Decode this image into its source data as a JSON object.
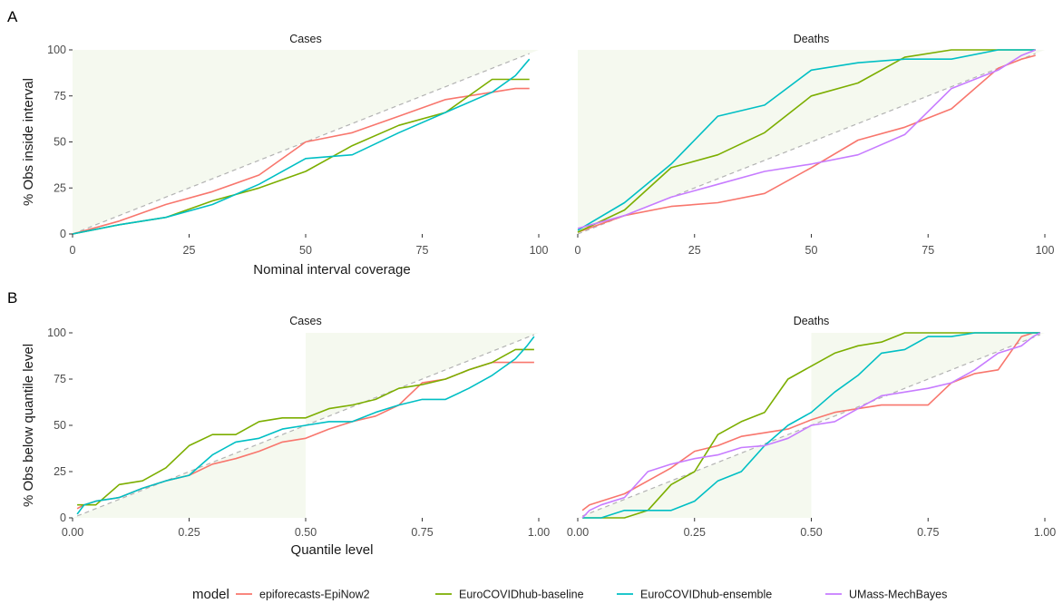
{
  "colors": {
    "epiforecasts-EpiNow2": "#F8766D",
    "EuroCOVIDhub-baseline": "#7CAE00",
    "EuroCOVIDhub-ensemble": "#00BFC4",
    "UMass-MechBayes": "#C77CFF",
    "shade": "#F5F9EF",
    "diag": "#B3B3B3"
  },
  "legend": {
    "title": "model",
    "items": [
      "epiforecasts-EpiNow2",
      "EuroCOVIDhub-baseline",
      "EuroCOVIDhub-ensemble",
      "UMass-MechBayes"
    ]
  },
  "chart_data": [
    {
      "tag": "A",
      "type": "line",
      "xlabel": "Nominal interval coverage",
      "ylabel": "% Obs inside interval",
      "xlim": [
        0,
        100
      ],
      "ylim": [
        0,
        100
      ],
      "xticks": [
        "0",
        "25",
        "50",
        "75",
        "100"
      ],
      "yticks": [
        "0",
        "25",
        "50",
        "75",
        "100"
      ],
      "reference_line": {
        "x": [
          0,
          98
        ],
        "y": [
          0,
          98
        ]
      },
      "shaded_region": "above diagonal",
      "panels": [
        {
          "title": "Cases",
          "series": [
            {
              "name": "epiforecasts-EpiNow2",
              "x": [
                0,
                10,
                20,
                30,
                40,
                50,
                60,
                70,
                80,
                90,
                95,
                98
              ],
              "y": [
                0,
                7,
                16,
                23,
                32,
                50,
                55,
                64,
                73,
                77,
                79,
                79
              ]
            },
            {
              "name": "EuroCOVIDhub-baseline",
              "x": [
                0,
                10,
                20,
                30,
                40,
                50,
                60,
                70,
                80,
                90,
                95,
                98
              ],
              "y": [
                0,
                5,
                9,
                18,
                25,
                34,
                48,
                59,
                66,
                84,
                84,
                84
              ]
            },
            {
              "name": "EuroCOVIDhub-ensemble",
              "x": [
                0,
                10,
                20,
                30,
                40,
                50,
                60,
                70,
                80,
                90,
                95,
                98
              ],
              "y": [
                0,
                5,
                9,
                16,
                27,
                41,
                43,
                55,
                66,
                77,
                86,
                95
              ]
            }
          ]
        },
        {
          "title": "Deaths",
          "series": [
            {
              "name": "epiforecasts-EpiNow2",
              "x": [
                0,
                10,
                20,
                30,
                40,
                50,
                60,
                70,
                80,
                90,
                95,
                98
              ],
              "y": [
                1,
                10,
                15,
                17,
                22,
                36,
                51,
                58,
                68,
                90,
                95,
                97
              ]
            },
            {
              "name": "EuroCOVIDhub-baseline",
              "x": [
                0,
                10,
                20,
                30,
                40,
                50,
                60,
                70,
                80,
                90,
                95,
                98
              ],
              "y": [
                1,
                13,
                36,
                43,
                55,
                75,
                82,
                96,
                100,
                100,
                100,
                100
              ]
            },
            {
              "name": "EuroCOVIDhub-ensemble",
              "x": [
                0,
                10,
                20,
                30,
                40,
                50,
                60,
                70,
                80,
                90,
                95,
                98
              ],
              "y": [
                2,
                17,
                38,
                64,
                70,
                89,
                93,
                95,
                95,
                100,
                100,
                100
              ]
            },
            {
              "name": "UMass-MechBayes",
              "x": [
                0,
                10,
                20,
                30,
                40,
                50,
                60,
                70,
                80,
                90,
                95,
                98
              ],
              "y": [
                3,
                10,
                20,
                27,
                34,
                38,
                43,
                54,
                79,
                89,
                97,
                100
              ]
            }
          ]
        }
      ]
    },
    {
      "tag": "B",
      "type": "line",
      "xlabel": "Quantile level",
      "ylabel": "% Obs below quantile level",
      "xlim": [
        0,
        1
      ],
      "ylim": [
        0,
        100
      ],
      "xticks": [
        "0.00",
        "0.25",
        "0.50",
        "0.75",
        "1.00"
      ],
      "yticks": [
        "0",
        "25",
        "50",
        "75",
        "100"
      ],
      "reference_line": {
        "x": [
          0.01,
          0.99
        ],
        "y": [
          1,
          99
        ]
      },
      "shaded_region": "lower diagonal triangle for quantile level < 0.5, upper for > 0.5",
      "panels": [
        {
          "title": "Cases",
          "series": [
            {
              "name": "epiforecasts-EpiNow2",
              "x": [
                0.01,
                0.025,
                0.05,
                0.1,
                0.15,
                0.2,
                0.25,
                0.3,
                0.35,
                0.4,
                0.45,
                0.5,
                0.55,
                0.6,
                0.65,
                0.7,
                0.75,
                0.8,
                0.85,
                0.9,
                0.95,
                0.975,
                0.99
              ],
              "y": [
                5,
                7,
                9,
                11,
                16,
                20,
                23,
                29,
                32,
                36,
                41,
                43,
                48,
                52,
                55,
                61,
                73,
                75,
                80,
                84,
                84,
                84,
                84
              ]
            },
            {
              "name": "EuroCOVIDhub-baseline",
              "x": [
                0.01,
                0.025,
                0.05,
                0.1,
                0.15,
                0.2,
                0.25,
                0.3,
                0.35,
                0.4,
                0.45,
                0.5,
                0.55,
                0.6,
                0.65,
                0.7,
                0.75,
                0.8,
                0.85,
                0.9,
                0.95,
                0.975,
                0.99
              ],
              "y": [
                7,
                7,
                7,
                18,
                20,
                27,
                39,
                45,
                45,
                52,
                54,
                54,
                59,
                61,
                64,
                70,
                72,
                75,
                80,
                84,
                91,
                91,
                91
              ]
            },
            {
              "name": "EuroCOVIDhub-ensemble",
              "x": [
                0.01,
                0.025,
                0.05,
                0.1,
                0.15,
                0.2,
                0.25,
                0.3,
                0.35,
                0.4,
                0.45,
                0.5,
                0.55,
                0.6,
                0.65,
                0.7,
                0.75,
                0.8,
                0.85,
                0.9,
                0.95,
                0.975,
                0.99
              ],
              "y": [
                2,
                7,
                9,
                11,
                16,
                20,
                23,
                34,
                41,
                43,
                48,
                50,
                52,
                52,
                57,
                61,
                64,
                64,
                70,
                77,
                86,
                93,
                98
              ]
            }
          ]
        },
        {
          "title": "Deaths",
          "series": [
            {
              "name": "epiforecasts-EpiNow2",
              "x": [
                0.01,
                0.025,
                0.05,
                0.1,
                0.15,
                0.2,
                0.25,
                0.3,
                0.35,
                0.4,
                0.45,
                0.5,
                0.55,
                0.6,
                0.65,
                0.7,
                0.75,
                0.8,
                0.85,
                0.9,
                0.95,
                0.975,
                0.99
              ],
              "y": [
                4,
                7,
                9,
                13,
                20,
                27,
                36,
                39,
                44,
                46,
                48,
                53,
                57,
                59,
                61,
                61,
                61,
                73,
                78,
                80,
                98,
                100,
                100
              ]
            },
            {
              "name": "EuroCOVIDhub-baseline",
              "x": [
                0.01,
                0.025,
                0.05,
                0.1,
                0.15,
                0.2,
                0.25,
                0.3,
                0.35,
                0.4,
                0.45,
                0.5,
                0.55,
                0.6,
                0.65,
                0.7,
                0.75,
                0.8,
                0.85,
                0.9,
                0.95,
                0.975,
                0.99
              ],
              "y": [
                0,
                0,
                0,
                0,
                4,
                18,
                25,
                45,
                52,
                57,
                75,
                82,
                89,
                93,
                95,
                100,
                100,
                100,
                100,
                100,
                100,
                100,
                100
              ]
            },
            {
              "name": "EuroCOVIDhub-ensemble",
              "x": [
                0.01,
                0.025,
                0.05,
                0.1,
                0.15,
                0.2,
                0.25,
                0.3,
                0.35,
                0.4,
                0.45,
                0.5,
                0.55,
                0.6,
                0.65,
                0.7,
                0.75,
                0.8,
                0.85,
                0.9,
                0.95,
                0.975,
                0.99
              ],
              "y": [
                0,
                0,
                0,
                4,
                4,
                4,
                9,
                20,
                25,
                39,
                50,
                57,
                68,
                77,
                89,
                91,
                98,
                98,
                100,
                100,
                100,
                100,
                100
              ]
            },
            {
              "name": "UMass-MechBayes",
              "x": [
                0.01,
                0.025,
                0.05,
                0.1,
                0.15,
                0.2,
                0.25,
                0.3,
                0.35,
                0.4,
                0.45,
                0.5,
                0.55,
                0.6,
                0.65,
                0.7,
                0.75,
                0.8,
                0.85,
                0.9,
                0.95,
                0.975,
                0.99
              ],
              "y": [
                0,
                4,
                7,
                11,
                25,
                29,
                32,
                34,
                38,
                39,
                43,
                50,
                52,
                59,
                66,
                68,
                70,
                73,
                80,
                89,
                93,
                98,
                100
              ]
            }
          ]
        }
      ]
    }
  ]
}
